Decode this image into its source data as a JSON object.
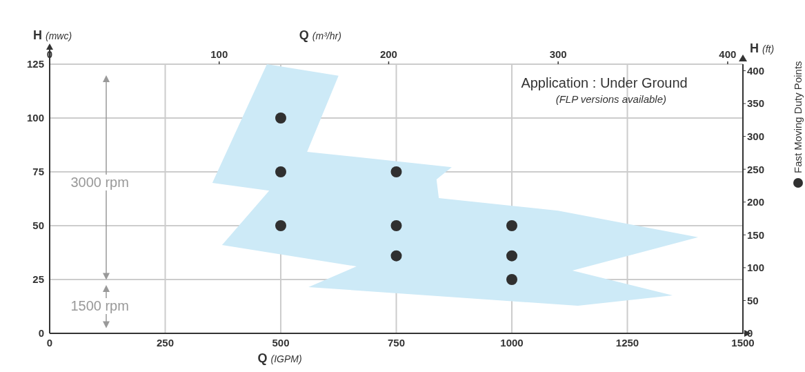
{
  "chart_data": {
    "type": "scatter",
    "xlabel": "Q (IGPM)",
    "x2label": "Q (m³/hr)",
    "ylabel": "H (mwc)",
    "y2label": "H (ft)",
    "xlim": [
      0,
      1500
    ],
    "xticks": [
      0,
      250,
      500,
      750,
      1000,
      1250,
      1500
    ],
    "x2lim": [
      0,
      409
    ],
    "x2ticks": [
      0,
      100,
      200,
      300,
      400
    ],
    "ylim": [
      0,
      125
    ],
    "yticks": [
      0,
      25,
      50,
      75,
      100,
      125
    ],
    "y2lim": [
      0,
      410
    ],
    "y2ticks": [
      0,
      50,
      100,
      150,
      200,
      250,
      300,
      350,
      400
    ],
    "grid": true,
    "legend": "right",
    "marker": "circle",
    "annotations": [
      "Application : Under Ground",
      "(FLP versions available)",
      "3000 rpm",
      "1500 rpm"
    ],
    "series": [
      {
        "type": "area",
        "marker": "none",
        "color": "#cdeaf7",
        "x": [
          470,
          625,
          557,
          870,
          837,
          842,
          1100,
          1403,
          1131,
          1348,
          1143,
          560,
          664,
          373,
          475,
          352
        ],
        "values": [
          125,
          119.6,
          84.3,
          77.2,
          71.5,
          62.8,
          57,
          44.6,
          29.2,
          17.6,
          12.8,
          21.5,
          31.1,
          41,
          66.3,
          69.9
        ]
      },
      {
        "type": "scatter",
        "name": "Fast Moving Duty Points",
        "color": "#303030",
        "x": [
          500,
          500,
          750,
          500,
          750,
          1000,
          750,
          1000,
          1000
        ],
        "values": [
          100,
          75,
          75,
          50,
          50,
          50,
          36,
          36,
          25
        ]
      }
    ]
  }
}
